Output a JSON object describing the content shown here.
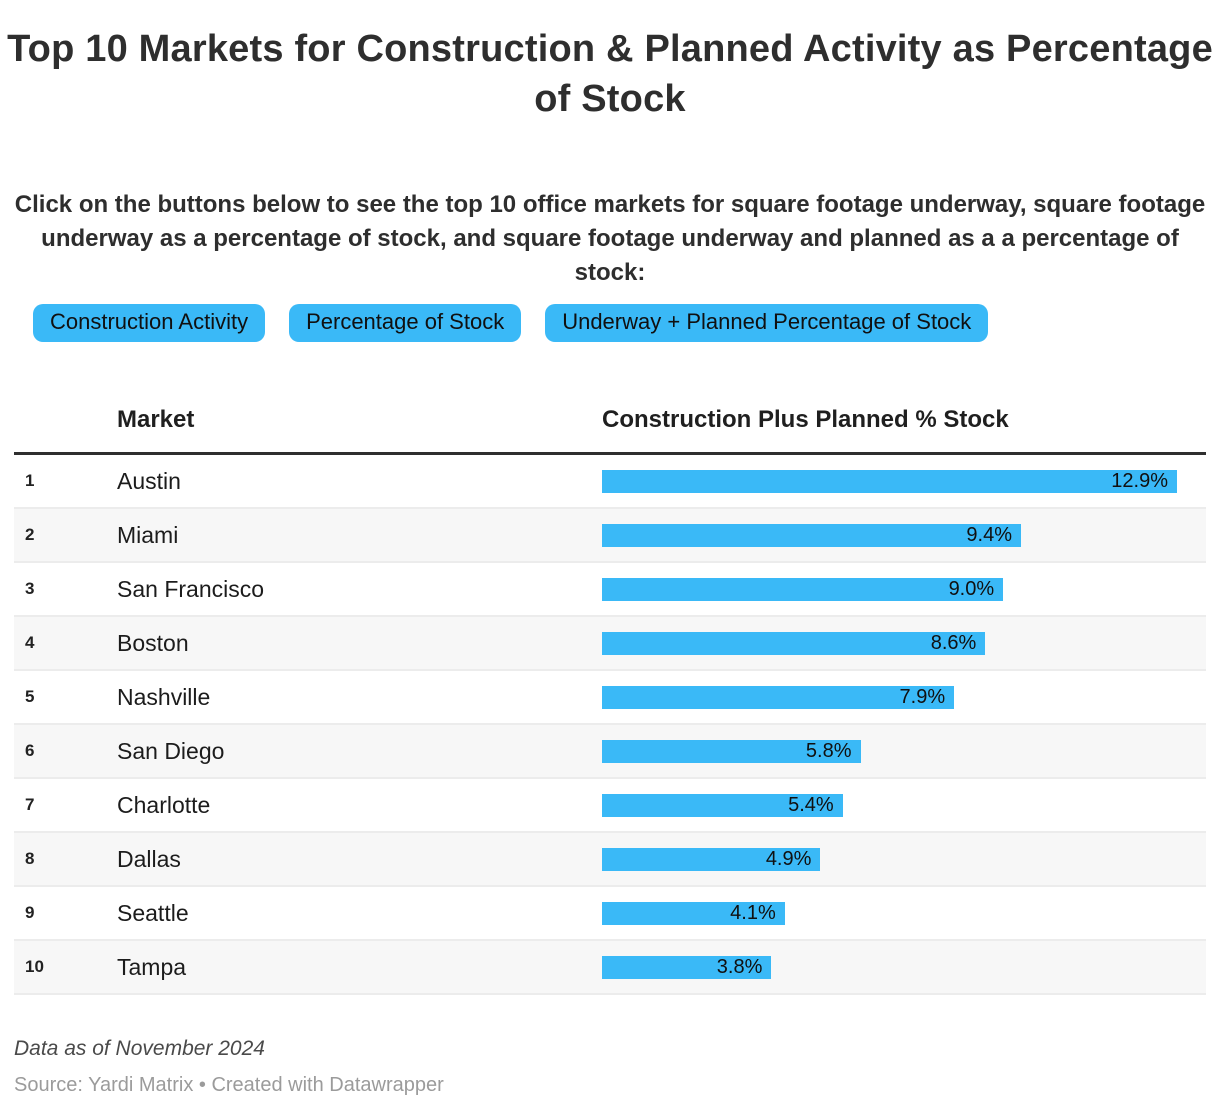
{
  "title": "Top 10 Markets for Construction & Planned Activity as Percentage of Stock",
  "description": "Click on the buttons below to see the top 10 office markets for square footage underway, square footage underway as a percentage of stock, and square footage underway and planned as a a percentage of stock:",
  "buttons": [
    {
      "label": "Construction Activity"
    },
    {
      "label": "Percentage of Stock"
    },
    {
      "label": "Underway + Planned Percentage of Stock"
    }
  ],
  "table": {
    "columns": [
      "Market",
      "Construction Plus Planned % Stock"
    ]
  },
  "chart_data": {
    "type": "bar",
    "title": "Top 10 Markets for Construction & Planned Activity as Percentage of Stock",
    "categories": [
      "Austin",
      "Miami",
      "San Francisco",
      "Boston",
      "Nashville",
      "San Diego",
      "Charlotte",
      "Dallas",
      "Seattle",
      "Tampa"
    ],
    "ranks": [
      1,
      2,
      3,
      4,
      5,
      6,
      7,
      8,
      9,
      10
    ],
    "values": [
      12.9,
      9.4,
      9.0,
      8.6,
      7.9,
      5.8,
      5.4,
      4.9,
      4.1,
      3.8
    ],
    "labels": [
      "12.9%",
      "9.4%",
      "9.0%",
      "8.6%",
      "7.9%",
      "5.8%",
      "5.4%",
      "4.9%",
      "4.1%",
      "3.8%"
    ],
    "value_column_label": "Construction Plus Planned % Stock",
    "xlabel": "",
    "ylabel": "",
    "xlim": [
      0,
      12.9
    ],
    "grid": false,
    "legend": false,
    "orientation": "horizontal"
  },
  "footer": {
    "note": "Data as of November 2024",
    "source": "Source: Yardi Matrix • Created with Datawrapper"
  },
  "colors": {
    "accent": "#3ab9f7",
    "bar_track": "#e6e6e6",
    "row_alt": "#f7f7f7",
    "header_rule": "#2f2f2f",
    "text": "#2e2e2e",
    "note_text": "#4a4a4a",
    "source_text": "#9b9b9b"
  }
}
